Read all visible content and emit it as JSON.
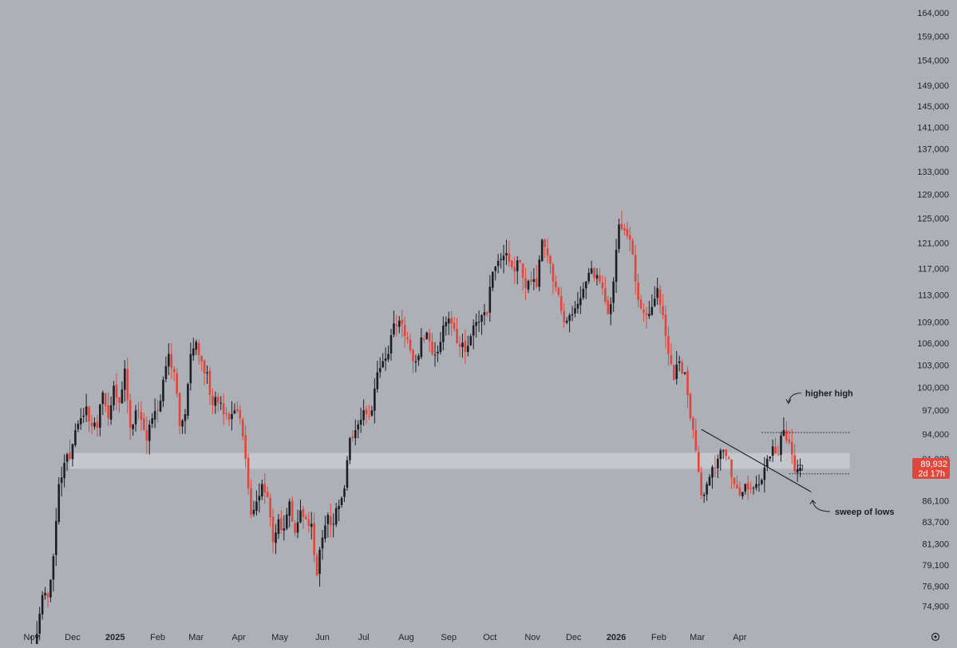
{
  "chart_data": {
    "type": "candlestick",
    "y_axis": {
      "scale": "log",
      "position": "right",
      "ticks": [
        164000,
        159000,
        154000,
        149000,
        145000,
        141000,
        137000,
        133000,
        129000,
        125000,
        121000,
        117000,
        113000,
        109000,
        106000,
        103000,
        100000,
        97000,
        94000,
        91000,
        86100,
        83700,
        81300,
        79100,
        76900,
        74900
      ],
      "tick_labels": [
        "164,000",
        "159,000",
        "154,000",
        "149,000",
        "145,000",
        "141,000",
        "137,000",
        "133,000",
        "129,000",
        "125,000",
        "121,000",
        "117,000",
        "113,000",
        "109,000",
        "106,000",
        "103,000",
        "100,000",
        "97,000",
        "94,000",
        "91,000",
        "86,100",
        "83,700",
        "81,300",
        "79,100",
        "76,900",
        "74,900"
      ]
    },
    "x_axis": {
      "labels": [
        {
          "text": "Nov",
          "date": "2024-11-01",
          "bold": false
        },
        {
          "text": "Dec",
          "date": "2024-12-01",
          "bold": false
        },
        {
          "text": "2025",
          "date": "2025-01-01",
          "bold": true
        },
        {
          "text": "Feb",
          "date": "2025-02-01",
          "bold": false
        },
        {
          "text": "Mar",
          "date": "2025-03-01",
          "bold": false
        },
        {
          "text": "Apr",
          "date": "2025-04-01",
          "bold": false
        },
        {
          "text": "May",
          "date": "2025-05-01",
          "bold": false
        },
        {
          "text": "Jun",
          "date": "2025-06-01",
          "bold": false
        },
        {
          "text": "Jul",
          "date": "2025-07-01",
          "bold": false
        },
        {
          "text": "Aug",
          "date": "2025-08-01",
          "bold": false
        },
        {
          "text": "Sep",
          "date": "2025-09-01",
          "bold": false
        },
        {
          "text": "Oct",
          "date": "2025-10-01",
          "bold": false
        },
        {
          "text": "Nov",
          "date": "2025-11-01",
          "bold": false
        },
        {
          "text": "Dec",
          "date": "2025-12-01",
          "bold": false
        },
        {
          "text": "2026",
          "date": "2026-01-01",
          "bold": true
        },
        {
          "text": "Feb",
          "date": "2026-02-01",
          "bold": false
        },
        {
          "text": "Mar",
          "date": "2026-03-01",
          "bold": false
        },
        {
          "text": "Apr",
          "date": "2026-04-01",
          "bold": false
        }
      ]
    },
    "interval": "2 days",
    "first_bar_date": "2024-11-01",
    "close_path": [
      [
        0,
        71000
      ],
      [
        2,
        72200
      ],
      [
        4,
        76000
      ],
      [
        6,
        75800
      ],
      [
        8,
        80000
      ],
      [
        10,
        88000
      ],
      [
        12,
        90500
      ],
      [
        14,
        91000
      ],
      [
        16,
        94500
      ],
      [
        18,
        96000
      ],
      [
        20,
        97500
      ],
      [
        22,
        95000
      ],
      [
        24,
        94800
      ],
      [
        26,
        99300
      ],
      [
        28,
        96000
      ],
      [
        30,
        100200
      ],
      [
        32,
        98000
      ],
      [
        34,
        102500
      ],
      [
        36,
        94800
      ],
      [
        38,
        97000
      ],
      [
        40,
        95800
      ],
      [
        42,
        93200
      ],
      [
        44,
        96000
      ],
      [
        46,
        97000
      ],
      [
        48,
        101000
      ],
      [
        50,
        104500
      ],
      [
        52,
        102000
      ],
      [
        54,
        95000
      ],
      [
        56,
        96500
      ],
      [
        58,
        104500
      ],
      [
        60,
        106200
      ],
      [
        62,
        103500
      ],
      [
        64,
        102000
      ],
      [
        66,
        97700
      ],
      [
        68,
        98000
      ],
      [
        70,
        96500
      ],
      [
        72,
        95800
      ],
      [
        74,
        97000
      ],
      [
        76,
        96000
      ],
      [
        78,
        91000
      ],
      [
        80,
        84500
      ],
      [
        82,
        86000
      ],
      [
        84,
        88000
      ],
      [
        86,
        86500
      ],
      [
        88,
        81500
      ],
      [
        90,
        84000
      ],
      [
        92,
        83000
      ],
      [
        94,
        86000
      ],
      [
        96,
        82500
      ],
      [
        98,
        85000
      ],
      [
        100,
        84000
      ],
      [
        102,
        83500
      ],
      [
        104,
        78000
      ],
      [
        106,
        82000
      ],
      [
        108,
        84500
      ],
      [
        110,
        83500
      ],
      [
        112,
        85500
      ],
      [
        114,
        87500
      ],
      [
        116,
        93500
      ],
      [
        118,
        94500
      ],
      [
        120,
        95800
      ],
      [
        122,
        96500
      ],
      [
        124,
        97000
      ],
      [
        126,
        102000
      ],
      [
        128,
        103500
      ],
      [
        130,
        104500
      ],
      [
        132,
        108800
      ],
      [
        134,
        109200
      ],
      [
        136,
        107000
      ],
      [
        138,
        105000
      ],
      [
        140,
        103500
      ],
      [
        142,
        106800
      ],
      [
        144,
        107500
      ],
      [
        146,
        104500
      ],
      [
        148,
        104800
      ],
      [
        150,
        108500
      ],
      [
        152,
        109500
      ],
      [
        154,
        108000
      ],
      [
        156,
        105500
      ],
      [
        158,
        104800
      ],
      [
        160,
        107000
      ],
      [
        162,
        109000
      ],
      [
        164,
        110000
      ],
      [
        166,
        110200
      ],
      [
        168,
        116500
      ],
      [
        170,
        118200
      ],
      [
        172,
        119000
      ],
      [
        174,
        118000
      ],
      [
        176,
        116500
      ],
      [
        178,
        118000
      ],
      [
        180,
        114000
      ],
      [
        182,
        115000
      ],
      [
        184,
        114200
      ],
      [
        186,
        121500
      ],
      [
        188,
        119000
      ],
      [
        190,
        115000
      ],
      [
        192,
        113000
      ],
      [
        194,
        109000
      ],
      [
        196,
        110000
      ],
      [
        198,
        111000
      ],
      [
        200,
        112500
      ],
      [
        202,
        115000
      ],
      [
        204,
        117000
      ],
      [
        206,
        116000
      ],
      [
        208,
        114000
      ],
      [
        210,
        110200
      ],
      [
        212,
        115000
      ],
      [
        214,
        124000
      ],
      [
        216,
        123000
      ],
      [
        218,
        121500
      ],
      [
        220,
        115000
      ],
      [
        222,
        111000
      ],
      [
        224,
        110000
      ],
      [
        226,
        111200
      ],
      [
        228,
        114000
      ],
      [
        230,
        110000
      ],
      [
        232,
        104500
      ],
      [
        234,
        101000
      ],
      [
        236,
        103500
      ],
      [
        238,
        102000
      ],
      [
        240,
        96000
      ],
      [
        242,
        92000
      ],
      [
        244,
        86700
      ],
      [
        246,
        88000
      ],
      [
        248,
        90000
      ],
      [
        250,
        91000
      ],
      [
        252,
        92000
      ],
      [
        254,
        91000
      ],
      [
        256,
        88000
      ],
      [
        258,
        86700
      ],
      [
        260,
        88000
      ],
      [
        262,
        87500
      ],
      [
        264,
        88000
      ],
      [
        266,
        88500
      ],
      [
        268,
        91000
      ],
      [
        270,
        92500
      ],
      [
        272,
        91500
      ],
      [
        274,
        94500
      ],
      [
        276,
        93000
      ],
      [
        278,
        89500
      ],
      [
        280,
        89932
      ]
    ],
    "last_price": {
      "value": "89,932",
      "countdown": "2d 17h"
    },
    "support_zone": {
      "low": 89800,
      "high": 91700,
      "from_bar": 14,
      "to_bar": 298
    },
    "trendline": {
      "from": [
        244,
        94600
      ],
      "to": [
        284,
        87100
      ]
    },
    "dotted_levels": [
      {
        "value": 94200,
        "from_bar": 266,
        "to_bar": 298
      },
      {
        "value": 89200,
        "from_bar": 276,
        "to_bar": 298
      }
    ],
    "annotations": [
      {
        "text": "higher high",
        "at_bar": 274,
        "value": 97800
      },
      {
        "text": "sweep of lows",
        "at_bar": 281,
        "value": 87600
      }
    ],
    "colors": {
      "background": "#aeb0b7",
      "bull": "#1c1e24",
      "bear": "#e0463b",
      "zone": "#c9cbd1",
      "last_price_badge": "#e0463b"
    },
    "grid": false
  }
}
